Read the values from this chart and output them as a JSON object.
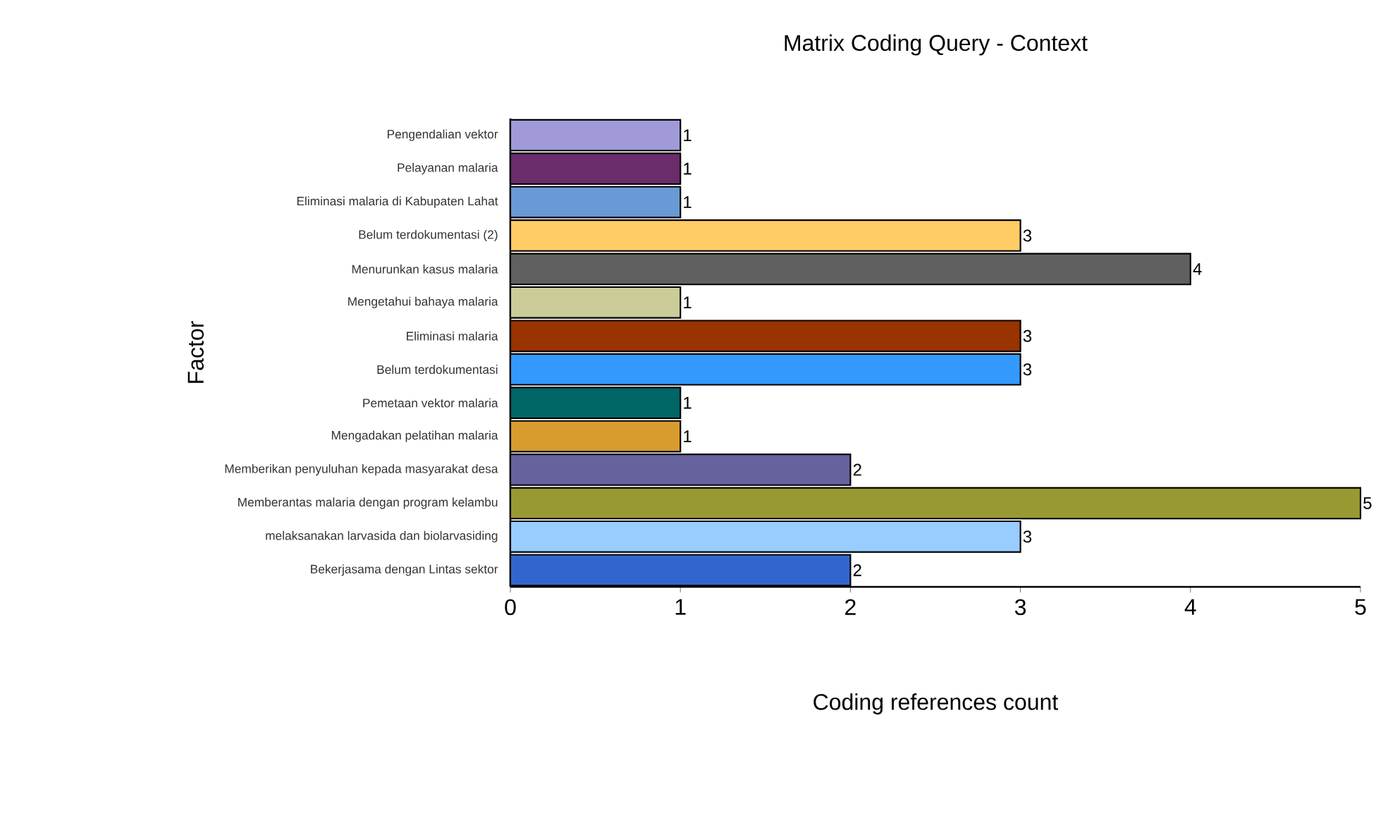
{
  "chart_data": {
    "type": "bar",
    "orientation": "horizontal",
    "title": "Matrix Coding Query - Context",
    "xlabel": "Coding references count",
    "ylabel": "Factor",
    "categories": [
      "Pengendalian vektor",
      "Pelayanan malaria",
      "Eliminasi malaria di Kabupaten Lahat",
      "Belum terdokumentasi (2)",
      "Menurunkan kasus malaria",
      "Mengetahui bahaya malaria",
      "Eliminasi malaria",
      "Belum terdokumentasi",
      "Pemetaan vektor malaria",
      "Mengadakan pelatihan malaria",
      "Memberikan penyuluhan kepada masyarakat desa",
      "Memberantas malaria dengan program kelambu",
      "melaksanakan larvasida dan biolarvasiding",
      "Bekerjasama dengan Lintas sektor"
    ],
    "values": [
      1,
      1,
      1,
      3,
      4,
      1,
      3,
      3,
      1,
      1,
      2,
      5,
      3,
      2
    ],
    "colors": [
      "#a09ad8",
      "#6b2c6b",
      "#6a9ad6",
      "#ffcc66",
      "#606060",
      "#cccc99",
      "#993300",
      "#3399ff",
      "#006666",
      "#d89b2e",
      "#66629e",
      "#999933",
      "#99ccff",
      "#3366cc"
    ],
    "xlim": [
      0,
      5
    ],
    "xticks": [
      0,
      1,
      2,
      3,
      4,
      5
    ],
    "data_labels": true,
    "grid": false
  }
}
